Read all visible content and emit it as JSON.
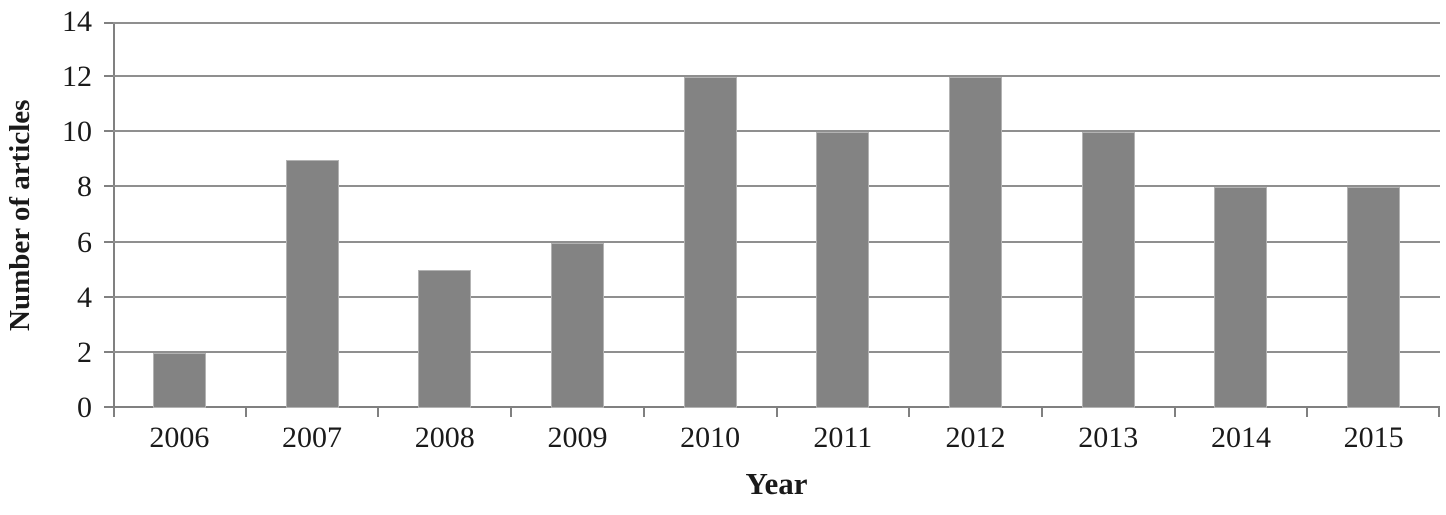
{
  "chart_data": {
    "type": "bar",
    "categories": [
      "2006",
      "2007",
      "2008",
      "2009",
      "2010",
      "2011",
      "2012",
      "2013",
      "2014",
      "2015"
    ],
    "values": [
      2,
      9,
      5,
      6,
      12,
      10,
      12,
      10,
      8,
      8
    ],
    "title": "",
    "xlabel": "Year",
    "ylabel": "Number of articles",
    "ylim": [
      0,
      14
    ],
    "yticks": [
      0,
      2,
      4,
      6,
      8,
      10,
      12,
      14
    ],
    "grid": true,
    "legend_position": "none",
    "colors": {
      "bar_fill": "#838383",
      "bar_border": "#b3b3b3",
      "gridline": "#8f8f8f",
      "axis": "#808080",
      "text": "#1a1a1a",
      "background": "#ffffff"
    }
  }
}
